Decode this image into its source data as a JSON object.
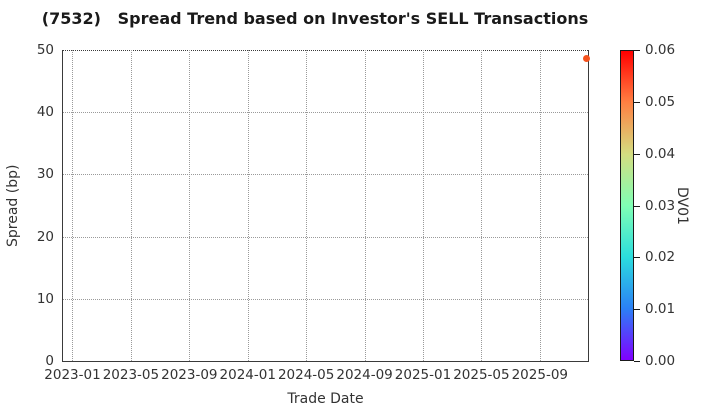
{
  "chart_data": {
    "type": "scatter",
    "title": "(7532)   Spread Trend based on Investor's SELL Transactions",
    "xlabel": "Trade Date",
    "ylabel": "Spread (bp)",
    "colorbar_label": "DV01",
    "grid": {
      "style": "dotted",
      "color": "#9a9a9a",
      "top_boundary": "dark dotted"
    },
    "legend": "none",
    "x_axis": {
      "unit": "months since 2023-01",
      "lim": [
        -0.65,
        35.3
      ],
      "ticks": [
        {
          "label": "2023-01",
          "m": 0
        },
        {
          "label": "2023-05",
          "m": 4
        },
        {
          "label": "2023-09",
          "m": 8
        },
        {
          "label": "2024-01",
          "m": 12
        },
        {
          "label": "2024-05",
          "m": 16
        },
        {
          "label": "2024-09",
          "m": 20
        },
        {
          "label": "2025-01",
          "m": 24
        },
        {
          "label": "2025-05",
          "m": 28
        },
        {
          "label": "2025-09",
          "m": 32
        }
      ]
    },
    "y_axis": {
      "lim": [
        0,
        50
      ],
      "ticks": [
        0,
        10,
        20,
        30,
        40,
        50
      ]
    },
    "colorbar": {
      "min": 0.0,
      "max": 0.06,
      "ticks": [
        "0.00",
        "0.01",
        "0.02",
        "0.03",
        "0.04",
        "0.05",
        "0.06"
      ],
      "gradient_stops": [
        {
          "frac": 0.0,
          "color": "#8000ff"
        },
        {
          "frac": 0.1667,
          "color": "#2b80f6"
        },
        {
          "frac": 0.3333,
          "color": "#2bdddd"
        },
        {
          "frac": 0.5,
          "color": "#80ffb4"
        },
        {
          "frac": 0.6667,
          "color": "#d4dd80"
        },
        {
          "frac": 0.8333,
          "color": "#ff8042"
        },
        {
          "frac": 1.0,
          "color": "#ff0000"
        }
      ]
    },
    "points": [
      {
        "trade_date": "2025-12",
        "month_index": 35.2,
        "spread_bp": 48.7,
        "dv01": 0.054,
        "color": "#f5521d",
        "marker_px": 7
      }
    ]
  }
}
